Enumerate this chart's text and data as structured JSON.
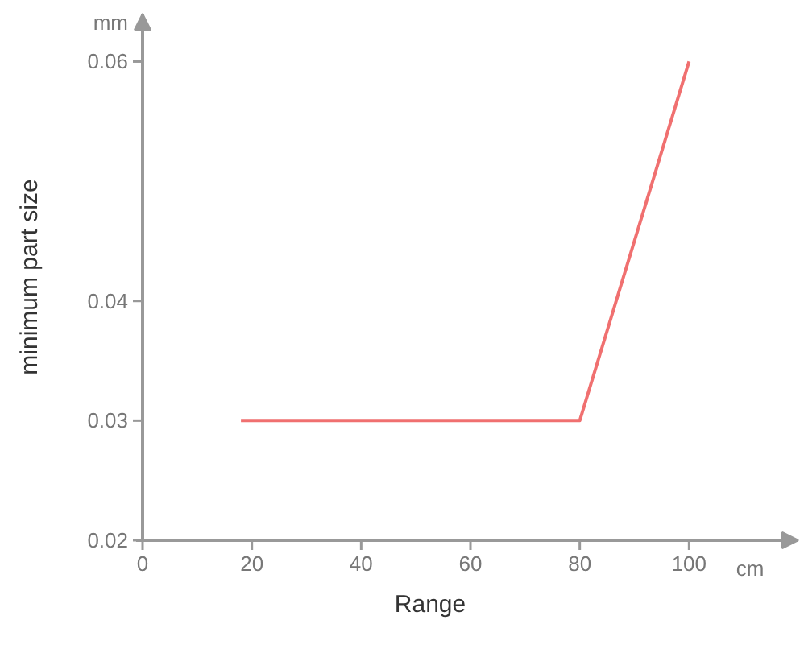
{
  "chart_data": {
    "type": "line",
    "xlabel": "Range",
    "ylabel": "minimum part size",
    "annotations": [
      "mm",
      "cm"
    ],
    "x": [
      18,
      80,
      100
    ],
    "series": [
      {
        "color": "#f07070",
        "values": [
          0.03,
          0.03,
          0.06
        ]
      }
    ],
    "xlim": [
      0,
      120
    ],
    "xticks": [
      0,
      20,
      40,
      60,
      80,
      100
    ],
    "ylim": [
      0.02,
      0.064
    ],
    "yticks": [
      0.02,
      0.03,
      0.04,
      0.06
    ],
    "grid": false,
    "marker": "none",
    "line_style": "solid"
  }
}
